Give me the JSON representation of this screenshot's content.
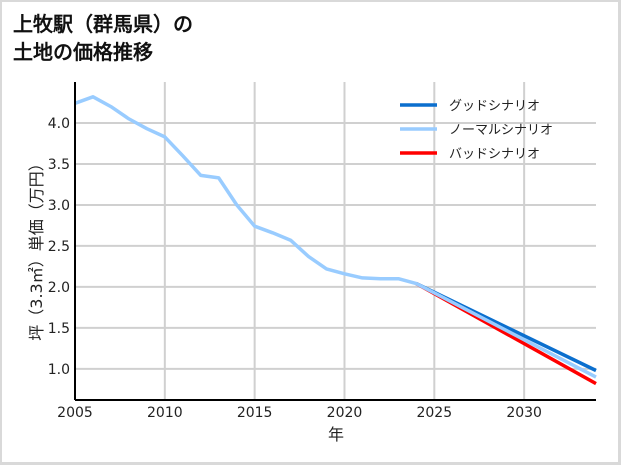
{
  "title": "上牧駅（群馬県）の\n土地の価格推移",
  "chart_data": {
    "type": "line",
    "title": "上牧駅（群馬県）の土地の価格推移",
    "xlabel": "年",
    "ylabel": "坪（3.3㎡）単価（万円）",
    "xlim": [
      2005,
      2034
    ],
    "ylim": [
      0.62,
      4.5
    ],
    "grid": true,
    "legend_position": "upper right",
    "x_ticks": [
      2005,
      2010,
      2015,
      2020,
      2025,
      2030
    ],
    "y_ticks": [
      1.0,
      1.5,
      2.0,
      2.5,
      3.0,
      3.5,
      4.0
    ],
    "x_tick_labels": [
      "2005",
      "2010",
      "2015",
      "2020",
      "2025",
      "2030"
    ],
    "y_tick_labels": [
      "1.0",
      "1.5",
      "2.0",
      "2.5",
      "3.0",
      "3.5",
      "4.0"
    ],
    "series": [
      {
        "name": "ノーマルシナリオ",
        "color": "#99ccff",
        "x": [
          2005,
          2006,
          2007,
          2008,
          2009,
          2010,
          2011,
          2012,
          2013,
          2014,
          2015,
          2016,
          2017,
          2018,
          2019,
          2020,
          2021,
          2022,
          2023,
          2024,
          2034
        ],
        "values": [
          4.24,
          4.32,
          4.2,
          4.05,
          3.93,
          3.83,
          3.6,
          3.36,
          3.33,
          3.0,
          2.74,
          2.66,
          2.57,
          2.37,
          2.22,
          2.16,
          2.11,
          2.1,
          2.1,
          2.04,
          0.9
        ]
      },
      {
        "name": "グッドシナリオ",
        "color": "#0b6fce",
        "x": [
          2024,
          2034
        ],
        "values": [
          2.04,
          0.98
        ]
      },
      {
        "name": "バッドシナリオ",
        "color": "#ff0000",
        "x": [
          2024,
          2034
        ],
        "values": [
          2.04,
          0.82
        ]
      }
    ]
  },
  "legend": [
    {
      "label": "グッドシナリオ",
      "color": "#0b6fce"
    },
    {
      "label": "ノーマルシナリオ",
      "color": "#99ccff"
    },
    {
      "label": "バッドシナリオ",
      "color": "#ff0000"
    }
  ]
}
